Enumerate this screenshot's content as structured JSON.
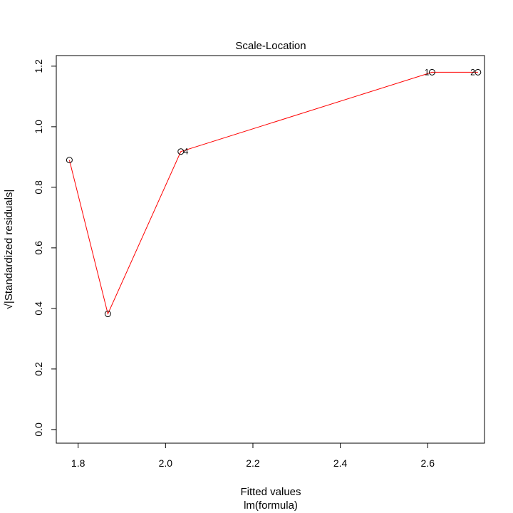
{
  "chart_data": {
    "type": "scatter",
    "title": "Scale-Location",
    "xlabel": "Fitted values",
    "xlabel_sub": "lm(formula)",
    "ylabel": "√|Standardized residuals|",
    "xlim": [
      1.75,
      2.73
    ],
    "ylim": [
      -0.045,
      1.235
    ],
    "x_ticks": [
      1.8,
      2.0,
      2.2,
      2.4,
      2.6
    ],
    "x_tick_labels": [
      "1.8",
      "2.0",
      "2.2",
      "2.4",
      "2.6"
    ],
    "y_ticks": [
      0.0,
      0.2,
      0.4,
      0.6,
      0.8,
      1.0,
      1.2
    ],
    "y_tick_labels": [
      "0.0",
      "0.2",
      "0.4",
      "0.6",
      "0.8",
      "1.0",
      "1.2"
    ],
    "grid": false,
    "points": [
      {
        "x": 1.78,
        "y": 0.89,
        "label": "",
        "label_side": ""
      },
      {
        "x": 1.868,
        "y": 0.382,
        "label": "",
        "label_side": ""
      },
      {
        "x": 2.035,
        "y": 0.918,
        "label": "4",
        "label_side": "right"
      },
      {
        "x": 2.61,
        "y": 1.18,
        "label": "1",
        "label_side": "left"
      },
      {
        "x": 2.715,
        "y": 1.18,
        "label": "2",
        "label_side": "left"
      }
    ],
    "smoother": {
      "color": "#ff0000",
      "x": [
        1.78,
        1.868,
        2.035,
        2.61,
        2.715
      ],
      "y": [
        0.89,
        0.382,
        0.918,
        1.18,
        1.18
      ]
    },
    "point_color": "#000000"
  }
}
